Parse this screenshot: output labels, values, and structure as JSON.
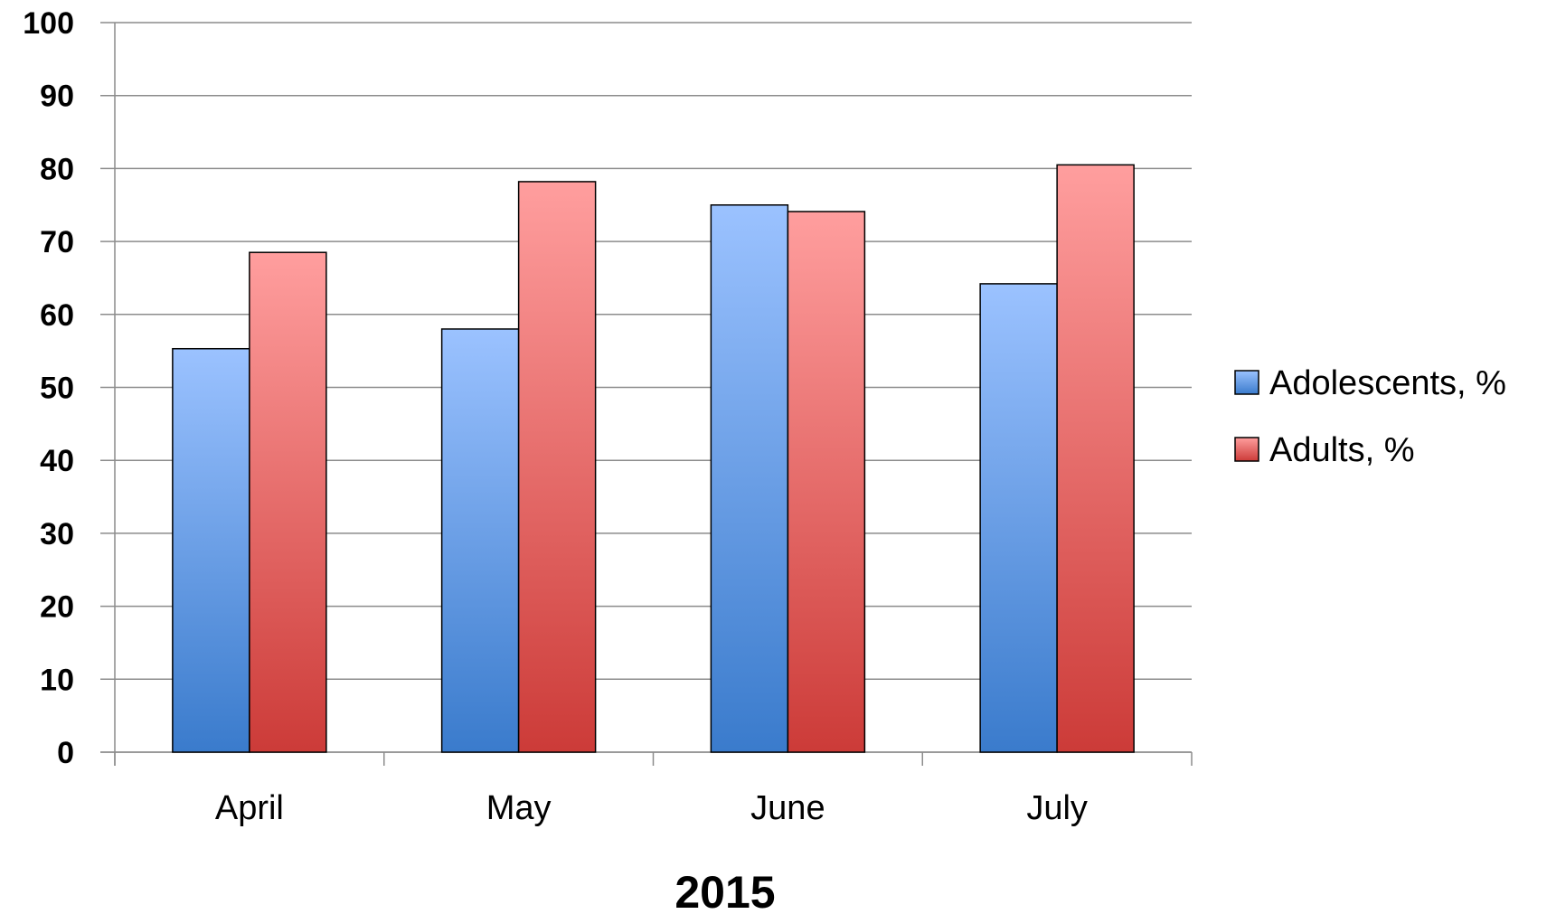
{
  "chart_data": {
    "type": "bar",
    "title": "",
    "xlabel": "2015",
    "ylabel": "",
    "categories": [
      "April",
      "May",
      "June",
      "July"
    ],
    "series": [
      {
        "name": "Adolescents, %",
        "values": [
          55.3,
          58.0,
          75.0,
          64.2
        ],
        "color_top": "#9bc2ff",
        "color_bottom": "#3a7bcc"
      },
      {
        "name": "Adults, %",
        "values": [
          68.5,
          78.2,
          74.1,
          80.5
        ],
        "color_top": "#ff9e9e",
        "color_bottom": "#cc3b38"
      }
    ],
    "ylim": [
      0,
      100
    ],
    "yticks": [
      "0",
      "10",
      "20",
      "30",
      "40",
      "50",
      "60",
      "70",
      "80",
      "90",
      "100"
    ],
    "grid": true,
    "legend_position": "right"
  }
}
